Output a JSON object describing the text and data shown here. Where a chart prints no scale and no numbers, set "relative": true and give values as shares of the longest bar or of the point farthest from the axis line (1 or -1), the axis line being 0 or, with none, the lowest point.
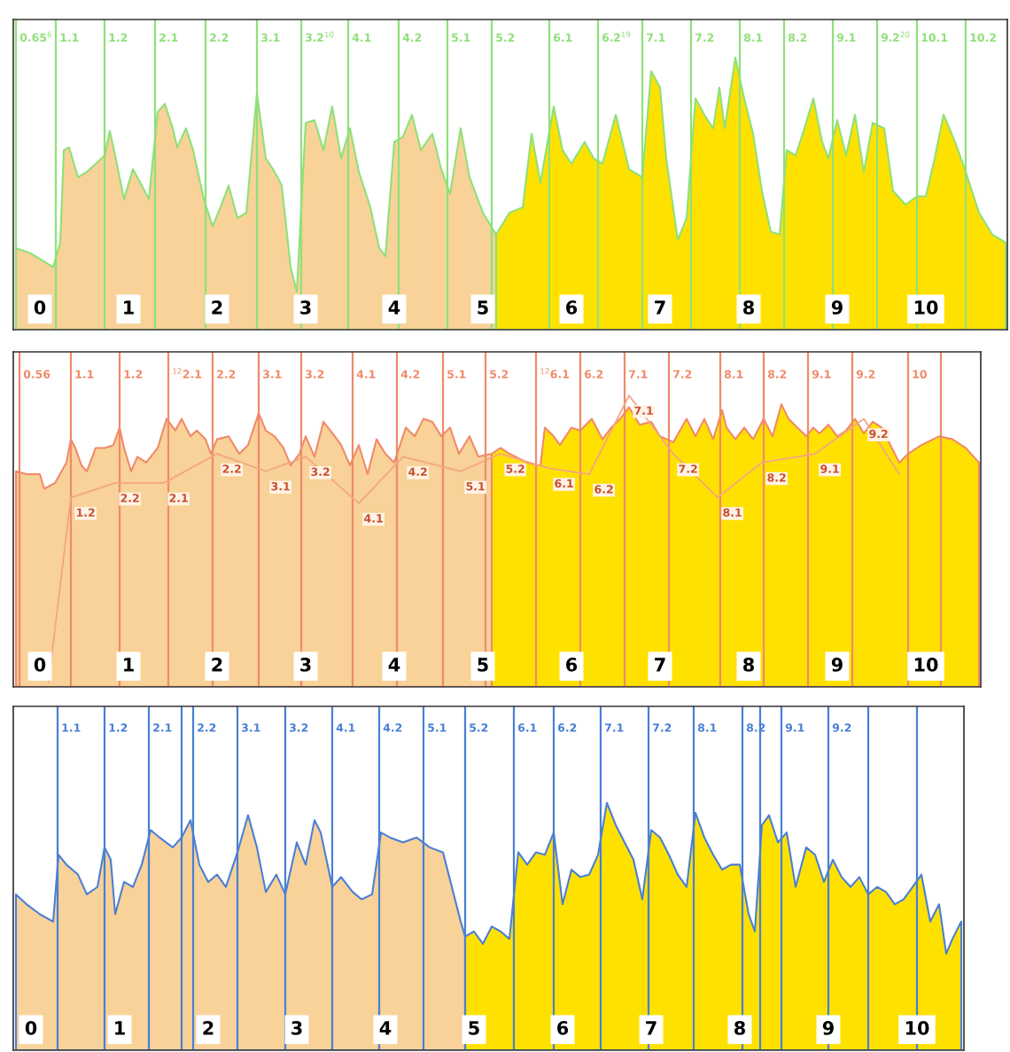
{
  "chart_data": [
    {
      "type": "area",
      "relative": true,
      "xlim": [
        -0.3,
        10.92
      ],
      "xticks": [
        0,
        1,
        2,
        3,
        4,
        5,
        6,
        7,
        8,
        9,
        10
      ],
      "series": [
        {
          "color": "#f8d298",
          "x": [
            -0.27,
            -0.1,
            0.05,
            0.15,
            0.23,
            0.27,
            0.33,
            0.43,
            0.53,
            0.63,
            0.73,
            0.79,
            0.85,
            0.95,
            1.05,
            1.15,
            1.23,
            1.33,
            1.41,
            1.5,
            1.55,
            1.65,
            1.73,
            1.85,
            1.95,
            2.05,
            2.13,
            2.23,
            2.33,
            2.45,
            2.55,
            2.65,
            2.73,
            2.83,
            2.9,
            3.0,
            3.1,
            3.2,
            3.3,
            3.4,
            3.5,
            3.6,
            3.73,
            3.83,
            3.9,
            4.0,
            4.1,
            4.2,
            4.3,
            4.43,
            4.53,
            4.63,
            4.75,
            4.85,
            5.0,
            5.15
          ],
          "values": [
            0.3,
            0.28,
            0.25,
            0.23,
            0.32,
            0.66,
            0.67,
            0.56,
            0.58,
            0.61,
            0.64,
            0.73,
            0.64,
            0.48,
            0.59,
            0.53,
            0.48,
            0.8,
            0.83,
            0.74,
            0.67,
            0.74,
            0.66,
            0.48,
            0.38,
            0.46,
            0.53,
            0.41,
            0.43,
            0.87,
            0.63,
            0.58,
            0.53,
            0.23,
            0.14,
            0.76,
            0.77,
            0.66,
            0.82,
            0.63,
            0.74,
            0.58,
            0.45,
            0.3,
            0.27,
            0.69,
            0.71,
            0.79,
            0.66,
            0.72,
            0.59,
            0.5,
            0.74,
            0.56,
            0.43,
            0.35
          ]
        },
        {
          "color": "#ffe100",
          "x": [
            5.15,
            5.3,
            5.45,
            5.55,
            5.65,
            5.8,
            5.9,
            6.0,
            6.15,
            6.25,
            6.35,
            6.5,
            6.65,
            6.8,
            6.9,
            7.0,
            7.07,
            7.2,
            7.3,
            7.4,
            7.5,
            7.6,
            7.67,
            7.73,
            7.85,
            7.95,
            8.05,
            8.15,
            8.25,
            8.35,
            8.43,
            8.53,
            8.63,
            8.73,
            8.83,
            8.9,
            9.0,
            9.1,
            9.2,
            9.3,
            9.4,
            9.53,
            9.63,
            9.77,
            9.9,
            10.0,
            10.1,
            10.2,
            10.33,
            10.45,
            10.6,
            10.75,
            10.9
          ],
          "values": [
            0.35,
            0.43,
            0.45,
            0.72,
            0.54,
            0.82,
            0.66,
            0.61,
            0.69,
            0.63,
            0.61,
            0.79,
            0.59,
            0.56,
            0.95,
            0.89,
            0.63,
            0.33,
            0.41,
            0.85,
            0.79,
            0.74,
            0.89,
            0.74,
            1.0,
            0.85,
            0.72,
            0.51,
            0.36,
            0.35,
            0.66,
            0.64,
            0.74,
            0.85,
            0.69,
            0.63,
            0.77,
            0.64,
            0.79,
            0.58,
            0.76,
            0.74,
            0.51,
            0.46,
            0.49,
            0.49,
            0.63,
            0.79,
            0.69,
            0.58,
            0.43,
            0.35,
            0.32
          ]
        }
      ],
      "ref_lines": [
        {
          "axis": "x",
          "value": -0.27,
          "color": "#8fe07a"
        },
        {
          "axis": "x",
          "value": 0.18,
          "color": "#8fe07a"
        },
        {
          "axis": "x",
          "value": 0.73,
          "color": "#8fe07a"
        },
        {
          "axis": "x",
          "value": 1.3,
          "color": "#8fe07a"
        },
        {
          "axis": "x",
          "value": 1.87,
          "color": "#8fe07a"
        },
        {
          "axis": "x",
          "value": 2.45,
          "color": "#8fe07a"
        },
        {
          "axis": "x",
          "value": 2.95,
          "color": "#8fe07a"
        },
        {
          "axis": "x",
          "value": 3.48,
          "color": "#8fe07a"
        },
        {
          "axis": "x",
          "value": 4.05,
          "color": "#8fe07a"
        },
        {
          "axis": "x",
          "value": 4.6,
          "color": "#8fe07a"
        },
        {
          "axis": "x",
          "value": 5.1,
          "color": "#8fe07a"
        },
        {
          "axis": "x",
          "value": 5.75,
          "color": "#8fe07a"
        },
        {
          "axis": "x",
          "value": 6.3,
          "color": "#8fe07a"
        },
        {
          "axis": "x",
          "value": 6.8,
          "color": "#8fe07a"
        },
        {
          "axis": "x",
          "value": 7.35,
          "color": "#8fe07a"
        },
        {
          "axis": "x",
          "value": 7.9,
          "color": "#8fe07a"
        },
        {
          "axis": "x",
          "value": 8.4,
          "color": "#8fe07a"
        },
        {
          "axis": "x",
          "value": 8.95,
          "color": "#8fe07a"
        },
        {
          "axis": "x",
          "value": 9.45,
          "color": "#8fe07a"
        },
        {
          "axis": "x",
          "value": 9.9,
          "color": "#8fe07a"
        },
        {
          "axis": "x",
          "value": 10.45,
          "color": "#8fe07a"
        }
      ],
      "annotations": [
        {
          "text": "0.65$^{6}$",
          "x": -0.27,
          "y": 1.07
        },
        {
          "text": "1.1",
          "x": 0.18,
          "y": 1.07
        },
        {
          "text": "1.2",
          "x": 0.73,
          "y": 1.07
        },
        {
          "text": "2.1",
          "x": 1.3,
          "y": 1.07
        },
        {
          "text": "2.2",
          "x": 1.87,
          "y": 1.07
        },
        {
          "text": "3.1",
          "x": 2.45,
          "y": 1.07
        },
        {
          "text": "3.2$^{10}$",
          "x": 2.95,
          "y": 1.07
        },
        {
          "text": "4.1",
          "x": 3.48,
          "y": 1.07
        },
        {
          "text": "4.2",
          "x": 4.05,
          "y": 1.07
        },
        {
          "text": "5.1",
          "x": 4.6,
          "y": 1.07
        },
        {
          "text": "5.2",
          "x": 5.1,
          "y": 1.07
        },
        {
          "text": "6.1",
          "x": 5.75,
          "y": 1.07
        },
        {
          "text": "6.2$^{19}$",
          "x": 6.3,
          "y": 1.07
        },
        {
          "text": "7.1",
          "x": 6.8,
          "y": 1.07
        },
        {
          "text": "7.2",
          "x": 7.35,
          "y": 1.07
        },
        {
          "text": "8.1",
          "x": 7.9,
          "y": 1.07
        },
        {
          "text": "8.2",
          "x": 8.4,
          "y": 1.07
        },
        {
          "text": "9.1",
          "x": 8.95,
          "y": 1.07
        },
        {
          "text": "9.2$^{20}$",
          "x": 9.45,
          "y": 1.07
        },
        {
          "text": "10.1",
          "x": 9.9,
          "y": 1.07
        },
        {
          "text": "10.2",
          "x": 10.45,
          "y": 1.07
        }
      ]
    },
    {
      "type": "area",
      "relative": true,
      "xlim": [
        -0.3,
        10.62
      ],
      "xticks": [
        0,
        1,
        2,
        3,
        4,
        5,
        6,
        7,
        8,
        9,
        10
      ],
      "series": [
        {
          "color": "#f8d298",
          "x": [
            -0.27,
            -0.15,
            0.0,
            0.05,
            0.17,
            0.3,
            0.35,
            0.4,
            0.47,
            0.53,
            0.63,
            0.73,
            0.83,
            0.9,
            0.95,
            1.03,
            1.1,
            1.2,
            1.33,
            1.43,
            1.53,
            1.6,
            1.7,
            1.77,
            1.87,
            1.93,
            2.0,
            2.13,
            2.25,
            2.35,
            2.47,
            2.55,
            2.65,
            2.75,
            2.83,
            2.93,
            3.0,
            3.1,
            3.2,
            3.33,
            3.4,
            3.5,
            3.6,
            3.7,
            3.8,
            3.9,
            4.0,
            4.13,
            4.23,
            4.33,
            4.43,
            4.53,
            4.63,
            4.73,
            4.85,
            4.95,
            5.1
          ],
          "values": [
            0.74,
            0.73,
            0.73,
            0.68,
            0.7,
            0.77,
            0.85,
            0.82,
            0.76,
            0.74,
            0.82,
            0.82,
            0.83,
            0.89,
            0.82,
            0.74,
            0.79,
            0.77,
            0.82,
            0.92,
            0.88,
            0.92,
            0.86,
            0.88,
            0.85,
            0.8,
            0.85,
            0.86,
            0.8,
            0.83,
            0.94,
            0.88,
            0.86,
            0.82,
            0.76,
            0.8,
            0.86,
            0.79,
            0.91,
            0.86,
            0.83,
            0.76,
            0.83,
            0.73,
            0.85,
            0.8,
            0.77,
            0.89,
            0.86,
            0.92,
            0.91,
            0.86,
            0.89,
            0.8,
            0.86,
            0.79,
            0.8
          ]
        },
        {
          "color": "#ffe100",
          "x": [
            5.1,
            5.2,
            5.3,
            5.5,
            5.65,
            5.7,
            5.8,
            5.87,
            6.0,
            6.1,
            6.23,
            6.35,
            6.45,
            6.55,
            6.65,
            6.77,
            6.9,
            7.0,
            7.15,
            7.3,
            7.4,
            7.5,
            7.6,
            7.7,
            7.75,
            7.85,
            7.95,
            8.05,
            8.17,
            8.27,
            8.37,
            8.45,
            8.55,
            8.65,
            8.73,
            8.8,
            8.9,
            9.0,
            9.1,
            9.2,
            9.3,
            9.4,
            9.5,
            9.6,
            9.7,
            9.8,
            9.95,
            10.15,
            10.3,
            10.45,
            10.6
          ],
          "values": [
            0.8,
            0.82,
            0.8,
            0.77,
            0.76,
            0.89,
            0.86,
            0.83,
            0.89,
            0.88,
            0.92,
            0.85,
            0.89,
            0.92,
            0.96,
            0.9,
            0.91,
            0.86,
            0.84,
            0.92,
            0.86,
            0.92,
            0.85,
            0.95,
            0.89,
            0.85,
            0.89,
            0.85,
            0.92,
            0.86,
            0.97,
            0.92,
            0.89,
            0.86,
            0.89,
            0.87,
            0.9,
            0.86,
            0.88,
            0.92,
            0.87,
            0.91,
            0.89,
            0.83,
            0.77,
            0.8,
            0.83,
            0.86,
            0.85,
            0.82,
            0.77
          ]
        },
        {
          "type": "line",
          "color": "#f4a585",
          "x": [
            0.1,
            0.35,
            0.85,
            1.4,
            2.0,
            2.55,
            3.0,
            3.6,
            4.1,
            4.75,
            5.2,
            5.75,
            6.2,
            6.65,
            7.15,
            7.65,
            8.15,
            8.75,
            9.3,
            9.7
          ],
          "values": [
            0.02,
            0.65,
            0.7,
            0.7,
            0.8,
            0.74,
            0.79,
            0.63,
            0.79,
            0.74,
            0.8,
            0.75,
            0.73,
            1.0,
            0.8,
            0.65,
            0.77,
            0.8,
            0.92,
            0.73
          ]
        }
      ],
      "ref_lines": [
        {
          "axis": "x",
          "value": -0.23,
          "color": "#f08a6a"
        },
        {
          "axis": "x",
          "value": 0.35,
          "color": "#f08a6a"
        },
        {
          "axis": "x",
          "value": 0.9,
          "color": "#f08a6a"
        },
        {
          "axis": "x",
          "value": 1.45,
          "color": "#f08a6a"
        },
        {
          "axis": "x",
          "value": 1.95,
          "color": "#f08a6a"
        },
        {
          "axis": "x",
          "value": 2.47,
          "color": "#f08a6a"
        },
        {
          "axis": "x",
          "value": 2.95,
          "color": "#f08a6a"
        },
        {
          "axis": "x",
          "value": 3.53,
          "color": "#f08a6a"
        },
        {
          "axis": "x",
          "value": 4.03,
          "color": "#f08a6a"
        },
        {
          "axis": "x",
          "value": 4.55,
          "color": "#f08a6a"
        },
        {
          "axis": "x",
          "value": 5.03,
          "color": "#f08a6a"
        },
        {
          "axis": "x",
          "value": 5.6,
          "color": "#f08a6a"
        },
        {
          "axis": "x",
          "value": 6.1,
          "color": "#f08a6a"
        },
        {
          "axis": "x",
          "value": 6.6,
          "color": "#f08a6a"
        },
        {
          "axis": "x",
          "value": 7.1,
          "color": "#f08a6a"
        },
        {
          "axis": "x",
          "value": 7.68,
          "color": "#f08a6a"
        },
        {
          "axis": "x",
          "value": 8.17,
          "color": "#f08a6a"
        },
        {
          "axis": "x",
          "value": 8.67,
          "color": "#f08a6a"
        },
        {
          "axis": "x",
          "value": 9.17,
          "color": "#f08a6a"
        },
        {
          "axis": "x",
          "value": 9.8,
          "color": "#f08a6a"
        },
        {
          "axis": "x",
          "value": 10.17,
          "color": "#f08a6a"
        }
      ],
      "annotations": [
        {
          "text": "0.56",
          "x": -0.23,
          "y": 1.07
        },
        {
          "text": "1.1",
          "x": 0.35,
          "y": 1.07
        },
        {
          "text": "1.2",
          "x": 0.9,
          "y": 1.07
        },
        {
          "text": "$^{12}$2.1",
          "x": 1.45,
          "y": 1.07
        },
        {
          "text": "2.2",
          "x": 1.95,
          "y": 1.07
        },
        {
          "text": "3.1",
          "x": 2.47,
          "y": 1.07
        },
        {
          "text": "3.2",
          "x": 2.95,
          "y": 1.07
        },
        {
          "text": "4.1",
          "x": 3.53,
          "y": 1.07
        },
        {
          "text": "4.2",
          "x": 4.03,
          "y": 1.07
        },
        {
          "text": "5.1",
          "x": 4.55,
          "y": 1.07
        },
        {
          "text": "5.2",
          "x": 5.03,
          "y": 1.07
        },
        {
          "text": "$^{12}$6.1",
          "x": 5.6,
          "y": 1.07
        },
        {
          "text": "6.2",
          "x": 6.1,
          "y": 1.07
        },
        {
          "text": "7.1",
          "x": 6.6,
          "y": 1.07
        },
        {
          "text": "7.2",
          "x": 7.1,
          "y": 1.07
        },
        {
          "text": "8.1",
          "x": 7.68,
          "y": 1.07
        },
        {
          "text": "8.2",
          "x": 8.17,
          "y": 1.07
        },
        {
          "text": "9.1",
          "x": 8.67,
          "y": 1.07
        },
        {
          "text": "9.2",
          "x": 9.17,
          "y": 1.07
        },
        {
          "text": "10",
          "x": 9.8,
          "y": 1.07
        },
        {
          "text": "1.2",
          "x": 0.35,
          "y": 0.65
        },
        {
          "text": "2.2",
          "x": 0.85,
          "y": 0.7
        },
        {
          "text": "2.1",
          "x": 1.4,
          "y": 0.7
        },
        {
          "text": "2.2",
          "x": 2.0,
          "y": 0.8
        },
        {
          "text": "3.1",
          "x": 2.55,
          "y": 0.74
        },
        {
          "text": "3.2",
          "x": 3.0,
          "y": 0.79
        },
        {
          "text": "4.1",
          "x": 3.6,
          "y": 0.63
        },
        {
          "text": "4.2",
          "x": 4.1,
          "y": 0.79
        },
        {
          "text": "5.1",
          "x": 4.75,
          "y": 0.74
        },
        {
          "text": "5.2",
          "x": 5.2,
          "y": 0.8
        },
        {
          "text": "6.1",
          "x": 5.75,
          "y": 0.75
        },
        {
          "text": "6.2",
          "x": 6.2,
          "y": 0.73
        },
        {
          "text": "7.1",
          "x": 6.65,
          "y": 1.0
        },
        {
          "text": "7.2",
          "x": 7.15,
          "y": 0.8
        },
        {
          "text": "8.1",
          "x": 7.65,
          "y": 0.65
        },
        {
          "text": "8.2",
          "x": 8.15,
          "y": 0.77
        },
        {
          "text": "9.1",
          "x": 8.75,
          "y": 0.8
        },
        {
          "text": "9.2",
          "x": 9.3,
          "y": 0.92
        }
      ]
    },
    {
      "type": "area",
      "relative": true,
      "xlim": [
        -0.2,
        10.53
      ],
      "xticks": [
        0,
        1,
        2,
        3,
        4,
        5,
        6,
        7,
        8,
        9,
        10
      ],
      "series": [
        {
          "color": "#f8d298",
          "x": [
            -0.17,
            -0.05,
            0.1,
            0.25,
            0.31,
            0.4,
            0.53,
            0.63,
            0.75,
            0.83,
            0.9,
            0.95,
            1.05,
            1.15,
            1.25,
            1.35,
            1.45,
            1.6,
            1.7,
            1.8,
            1.9,
            2.0,
            2.1,
            2.2,
            2.33,
            2.45,
            2.55,
            2.65,
            2.77,
            2.87,
            3.0,
            3.1,
            3.2,
            3.27,
            3.4,
            3.5,
            3.63,
            3.73,
            3.85,
            3.95,
            4.05,
            4.2,
            4.35,
            4.5,
            4.65,
            4.75,
            4.85,
            4.9
          ],
          "values": [
            0.63,
            0.59,
            0.55,
            0.52,
            0.79,
            0.75,
            0.71,
            0.63,
            0.66,
            0.82,
            0.77,
            0.55,
            0.68,
            0.66,
            0.75,
            0.89,
            0.86,
            0.82,
            0.86,
            0.93,
            0.75,
            0.68,
            0.71,
            0.66,
            0.8,
            0.95,
            0.82,
            0.64,
            0.71,
            0.63,
            0.84,
            0.75,
            0.93,
            0.88,
            0.66,
            0.7,
            0.64,
            0.61,
            0.63,
            0.88,
            0.86,
            0.84,
            0.86,
            0.82,
            0.8,
            0.66,
            0.52,
            0.46
          ]
        },
        {
          "color": "#ffe100",
          "x": [
            4.9,
            5.0,
            5.1,
            5.2,
            5.3,
            5.4,
            5.5,
            5.6,
            5.7,
            5.8,
            5.9,
            6.0,
            6.1,
            6.2,
            6.3,
            6.4,
            6.5,
            6.6,
            6.7,
            6.8,
            6.9,
            7.0,
            7.1,
            7.2,
            7.3,
            7.4,
            7.5,
            7.6,
            7.7,
            7.8,
            7.9,
            8.0,
            8.1,
            8.17,
            8.25,
            8.33,
            8.43,
            8.53,
            8.63,
            8.75,
            8.85,
            8.95,
            9.05,
            9.15,
            9.25,
            9.35,
            9.45,
            9.55,
            9.65,
            9.75,
            9.85,
            9.95,
            10.05,
            10.15,
            10.25,
            10.33,
            10.4,
            10.5
          ],
          "values": [
            0.46,
            0.48,
            0.43,
            0.5,
            0.48,
            0.45,
            0.8,
            0.75,
            0.8,
            0.79,
            0.88,
            0.59,
            0.73,
            0.7,
            0.71,
            0.79,
            1.0,
            0.91,
            0.84,
            0.77,
            0.61,
            0.89,
            0.86,
            0.79,
            0.71,
            0.66,
            0.96,
            0.86,
            0.79,
            0.73,
            0.75,
            0.75,
            0.55,
            0.48,
            0.91,
            0.95,
            0.84,
            0.88,
            0.66,
            0.82,
            0.79,
            0.68,
            0.77,
            0.7,
            0.66,
            0.7,
            0.63,
            0.66,
            0.64,
            0.59,
            0.61,
            0.66,
            0.71,
            0.52,
            0.59,
            0.39,
            0.45,
            0.52
          ]
        }
      ],
      "ref_lines": [
        {
          "axis": "x",
          "value": 0.3,
          "color": "#4a7fd4"
        },
        {
          "axis": "x",
          "value": 0.83,
          "color": "#4a7fd4"
        },
        {
          "axis": "x",
          "value": 1.33,
          "color": "#4a7fd4"
        },
        {
          "axis": "x",
          "value": 1.7,
          "color": "#4a7fd4"
        },
        {
          "axis": "x",
          "value": 1.83,
          "color": "#4a7fd4"
        },
        {
          "axis": "x",
          "value": 2.33,
          "color": "#4a7fd4"
        },
        {
          "axis": "x",
          "value": 2.87,
          "color": "#4a7fd4"
        },
        {
          "axis": "x",
          "value": 3.4,
          "color": "#4a7fd4"
        },
        {
          "axis": "x",
          "value": 3.93,
          "color": "#4a7fd4"
        },
        {
          "axis": "x",
          "value": 4.43,
          "color": "#4a7fd4"
        },
        {
          "axis": "x",
          "value": 4.9,
          "color": "#4a7fd4"
        },
        {
          "axis": "x",
          "value": 5.45,
          "color": "#4a7fd4"
        },
        {
          "axis": "x",
          "value": 5.9,
          "color": "#4a7fd4"
        },
        {
          "axis": "x",
          "value": 6.43,
          "color": "#4a7fd4"
        },
        {
          "axis": "x",
          "value": 6.97,
          "color": "#4a7fd4"
        },
        {
          "axis": "x",
          "value": 7.48,
          "color": "#4a7fd4"
        },
        {
          "axis": "x",
          "value": 8.03,
          "color": "#4a7fd4"
        },
        {
          "axis": "x",
          "value": 8.23,
          "color": "#4a7fd4"
        },
        {
          "axis": "x",
          "value": 8.47,
          "color": "#4a7fd4"
        },
        {
          "axis": "x",
          "value": 9.0,
          "color": "#4a7fd4"
        },
        {
          "axis": "x",
          "value": 9.45,
          "color": "#4a7fd4"
        },
        {
          "axis": "x",
          "value": 10.0,
          "color": "#4a7fd4"
        }
      ],
      "annotations": [
        {
          "text": "1.1",
          "x": 0.3,
          "y": 1.3
        },
        {
          "text": "1.2",
          "x": 0.83,
          "y": 1.3
        },
        {
          "text": "2.1",
          "x": 1.33,
          "y": 1.3
        },
        {
          "text": "2.2",
          "x": 1.83,
          "y": 1.3
        },
        {
          "text": "3.1",
          "x": 2.33,
          "y": 1.3
        },
        {
          "text": "3.2",
          "x": 2.87,
          "y": 1.3
        },
        {
          "text": "4.1",
          "x": 3.4,
          "y": 1.3
        },
        {
          "text": "4.2",
          "x": 3.93,
          "y": 1.3
        },
        {
          "text": "5.1",
          "x": 4.43,
          "y": 1.3
        },
        {
          "text": "5.2",
          "x": 4.9,
          "y": 1.3
        },
        {
          "text": "6.1",
          "x": 5.45,
          "y": 1.3
        },
        {
          "text": "6.2",
          "x": 5.9,
          "y": 1.3
        },
        {
          "text": "7.1",
          "x": 6.43,
          "y": 1.3
        },
        {
          "text": "7.2",
          "x": 6.97,
          "y": 1.3
        },
        {
          "text": "8.1",
          "x": 7.48,
          "y": 1.3
        },
        {
          "text": "8.2",
          "x": 8.03,
          "y": 1.3
        },
        {
          "text": "9.1",
          "x": 8.47,
          "y": 1.3
        },
        {
          "text": "9.2",
          "x": 9.0,
          "y": 1.3
        }
      ]
    }
  ]
}
